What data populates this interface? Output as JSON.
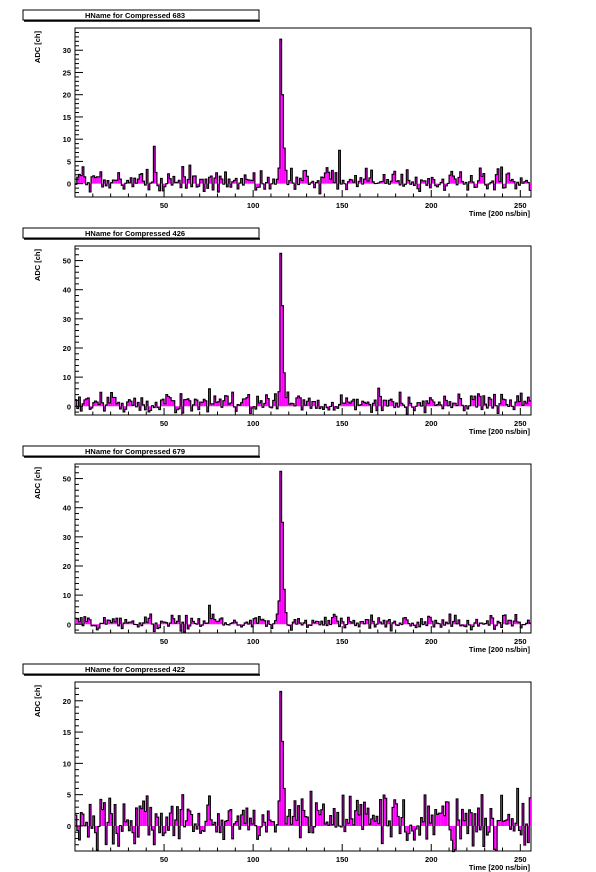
{
  "chart_data": [
    {
      "type": "bar",
      "title": "HName for Compressed 683",
      "xlabel": "Time [200 ns/bin]",
      "ylabel": "ADC [ch]",
      "xlim": [
        0,
        256
      ],
      "ylim": [
        -3,
        35
      ],
      "xticks": [
        50,
        100,
        150,
        200,
        250
      ],
      "yticks": [
        0,
        5,
        10,
        15,
        20,
        25,
        30
      ],
      "fill_color": "#ff00ff",
      "baseline": 0.6,
      "noise": 1.6,
      "seed": 683,
      "peaks": [
        {
          "bin": 114,
          "value": 3.5
        },
        {
          "bin": 115,
          "value": 32.5
        },
        {
          "bin": 116,
          "value": 20.0
        },
        {
          "bin": 117,
          "value": 8.0
        },
        {
          "bin": 118,
          "value": 3.0
        },
        {
          "bin": 44,
          "value": 8.4
        },
        {
          "bin": 148,
          "value": 7.5
        },
        {
          "bin": 4,
          "value": 3.8
        },
        {
          "bin": 40,
          "value": 3.2
        },
        {
          "bin": 227,
          "value": 3.5
        }
      ]
    },
    {
      "type": "bar",
      "title": "HName for Compressed 426",
      "xlabel": "Time [200 ns/bin]",
      "ylabel": "ADC [ch]",
      "xlim": [
        0,
        256
      ],
      "ylim": [
        -3,
        55
      ],
      "xticks": [
        50,
        100,
        150,
        200,
        250
      ],
      "yticks": [
        0,
        10,
        20,
        30,
        40,
        50
      ],
      "fill_color": "#ff00ff",
      "baseline": 1.2,
      "noise": 2.0,
      "seed": 426,
      "peaks": [
        {
          "bin": 114,
          "value": 5.0
        },
        {
          "bin": 115,
          "value": 52.5
        },
        {
          "bin": 116,
          "value": 34.5
        },
        {
          "bin": 117,
          "value": 11.5
        },
        {
          "bin": 118,
          "value": 3.0
        },
        {
          "bin": 75,
          "value": 6.0
        },
        {
          "bin": 170,
          "value": 6.2
        },
        {
          "bin": 14,
          "value": 4.8
        },
        {
          "bin": 250,
          "value": 4.5
        }
      ]
    },
    {
      "type": "bar",
      "title": "HName for Compressed 679",
      "xlabel": "Time [200 ns/bin]",
      "ylabel": "ADC [ch]",
      "xlim": [
        0,
        256
      ],
      "ylim": [
        -3,
        55
      ],
      "xticks": [
        50,
        100,
        150,
        200,
        250
      ],
      "yticks": [
        0,
        10,
        20,
        30,
        40,
        50
      ],
      "fill_color": "#ff00ff",
      "baseline": 0.5,
      "noise": 1.6,
      "seed": 679,
      "peaks": [
        {
          "bin": 113,
          "value": 3.5
        },
        {
          "bin": 114,
          "value": 8.0
        },
        {
          "bin": 115,
          "value": 52.5
        },
        {
          "bin": 116,
          "value": 35.0
        },
        {
          "bin": 117,
          "value": 12.0
        },
        {
          "bin": 118,
          "value": 4.0
        },
        {
          "bin": 75,
          "value": 6.5
        },
        {
          "bin": 44,
          "value": -2.5
        },
        {
          "bin": 210,
          "value": 3.5
        },
        {
          "bin": 240,
          "value": 3.0
        }
      ]
    },
    {
      "type": "bar",
      "title": "HName for Compressed 422",
      "xlabel": "Time [200 ns/bin]",
      "ylabel": "ADC [ch]",
      "xlim": [
        0,
        256
      ],
      "ylim": [
        -4,
        23
      ],
      "xticks": [
        50,
        100,
        150,
        200,
        250
      ],
      "yticks": [
        0,
        5,
        10,
        15,
        20
      ],
      "fill_color": "#ff00ff",
      "baseline": 0.9,
      "noise": 2.4,
      "seed": 422,
      "peaks": [
        {
          "bin": 114,
          "value": 4.0
        },
        {
          "bin": 115,
          "value": 21.5
        },
        {
          "bin": 116,
          "value": 13.5
        },
        {
          "bin": 117,
          "value": 6.0
        },
        {
          "bin": 44,
          "value": -3.0
        },
        {
          "bin": 40,
          "value": 4.8
        },
        {
          "bin": 60,
          "value": 5.0
        },
        {
          "bin": 248,
          "value": 6.0
        },
        {
          "bin": 228,
          "value": 5.0
        },
        {
          "bin": 255,
          "value": 4.5
        }
      ]
    }
  ]
}
